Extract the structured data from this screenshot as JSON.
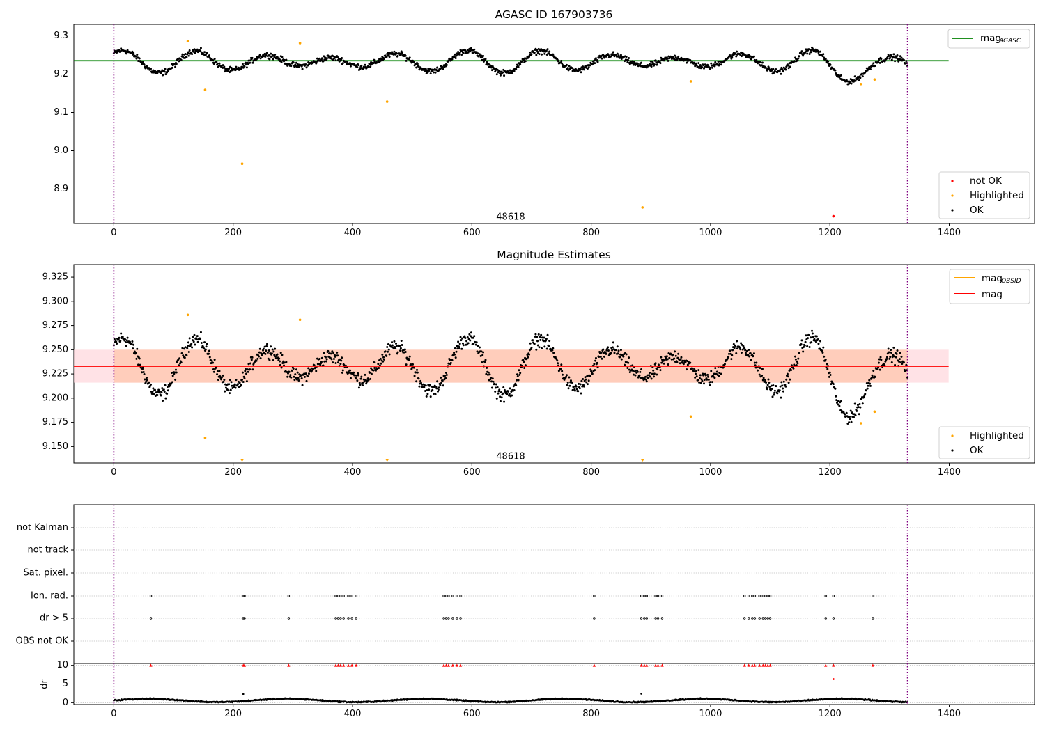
{
  "chart_data": [
    {
      "type": "scatter",
      "title": "AGASC ID 167903736",
      "xlim": [
        -67,
        1543
      ],
      "ylim": [
        8.81,
        9.33
      ],
      "x_ticks": [
        0,
        200,
        400,
        600,
        800,
        1000,
        1200,
        1400
      ],
      "y_ticks": [
        8.9,
        9.0,
        9.1,
        9.2,
        9.3
      ],
      "y_tick_labels": [
        "8.9",
        "9.0",
        "9.1",
        "9.2",
        "9.3"
      ],
      "annotation": {
        "text": "48618",
        "x": 665,
        "y": 8.826
      },
      "vlines": [
        0,
        1330
      ],
      "hline": {
        "label": "mag_AGASC",
        "y": 9.235,
        "x": [
          -67,
          1399
        ],
        "color": "#008000"
      },
      "legend": {
        "line": [
          "mag",
          "AGASC"
        ],
        "position": "top-right"
      },
      "legend_points": [
        "not OK",
        "Highlighted",
        "OK"
      ],
      "legend_points_position": "bottom-right",
      "ok_points": {
        "x_range": [
          0,
          1330
        ],
        "count": 1330,
        "color": "#000000"
      },
      "highlighted_points": {
        "color": "#ffa500",
        "x": [
          124,
          153,
          215,
          312,
          458,
          886,
          967,
          1252,
          1275
        ],
        "y": [
          9.286,
          9.159,
          8.966,
          9.281,
          9.128,
          8.852,
          9.181,
          9.174,
          9.186
        ]
      },
      "not_ok_points": {
        "color": "#ff0000",
        "x": [
          1206
        ],
        "y": [
          8.829
        ]
      }
    },
    {
      "type": "scatter",
      "title": "Magnitude Estimates",
      "xlim": [
        -67,
        1543
      ],
      "ylim": [
        9.133,
        9.338
      ],
      "x_ticks": [
        0,
        200,
        400,
        600,
        800,
        1000,
        1200,
        1400
      ],
      "y_ticks": [
        9.15,
        9.175,
        9.2,
        9.225,
        9.25,
        9.275,
        9.3,
        9.325
      ],
      "y_tick_labels": [
        "9.150",
        "9.175",
        "9.200",
        "9.225",
        "9.250",
        "9.275",
        "9.300",
        "9.325"
      ],
      "annotation": {
        "text": "48618",
        "x": 665,
        "y": 9.1395
      },
      "vlines": [
        0,
        1330
      ],
      "mag": 9.233,
      "band_inner": [
        9.216,
        9.25
      ],
      "band_outer": [
        9.216,
        9.25
      ],
      "band_x": [
        -67,
        1399
      ],
      "legend": {
        "lines": [
          {
            "label": [
              "mag",
              "OBSID"
            ],
            "color": "#ffa500"
          },
          {
            "label": [
              "mag",
              ""
            ],
            "color": "#ff0000"
          }
        ],
        "position": "top-right"
      },
      "legend_points": [
        "Highlighted",
        "OK"
      ],
      "legend_points_position": "bottom-right",
      "highlighted_points": {
        "color": "#ffa500",
        "x": [
          124,
          153,
          312,
          967,
          1252,
          1275
        ],
        "y": [
          9.286,
          9.159,
          9.281,
          9.181,
          9.174,
          9.186
        ]
      },
      "out_of_range_markers": {
        "color": "#ffa500",
        "x": [
          215,
          458,
          886
        ]
      }
    },
    {
      "type": "scatter",
      "title": "",
      "xlim": [
        -67,
        1543
      ],
      "categories": [
        "not Kalman",
        "not track",
        "Sat. pixel.",
        "Ion. rad.",
        "dr > 5",
        "OBS not OK"
      ],
      "flag_x": [
        62,
        217,
        219,
        293,
        372,
        376,
        380,
        385,
        393,
        399,
        406,
        553,
        557,
        561,
        568,
        575,
        581,
        805,
        884,
        889,
        893,
        908,
        912,
        919,
        1057,
        1064,
        1070,
        1074,
        1082,
        1088,
        1092,
        1096,
        1100,
        1193,
        1206,
        1272
      ],
      "flag_rows": [
        "Ion. rad.",
        "dr > 5"
      ],
      "vlines": [
        0,
        1330
      ]
    },
    {
      "type": "scatter",
      "title": "",
      "ylabel": "dr",
      "xlim": [
        -67,
        1543
      ],
      "ylim": [
        -0.5,
        10.5
      ],
      "x_ticks": [
        0,
        200,
        400,
        600,
        800,
        1000,
        1200,
        1400
      ],
      "y_ticks": [
        0,
        5,
        10
      ],
      "y_tick_labels": [
        "0",
        "5",
        "10"
      ],
      "clipped_markers": {
        "color": "#ff0000",
        "x_same_as": "flag_x",
        "y": 10
      },
      "extra_red_points": {
        "x": [
          1206
        ],
        "y": [
          6.3
        ]
      },
      "dr_points": {
        "x_range": [
          0,
          1330
        ],
        "typical": [
          0.1,
          1.5
        ]
      },
      "vlines": [
        0,
        1330
      ]
    }
  ]
}
